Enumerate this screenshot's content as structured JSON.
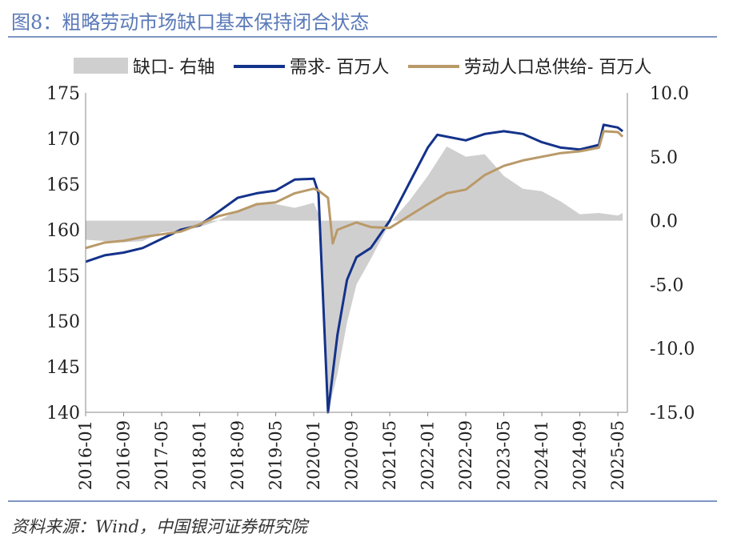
{
  "title": "图8：粗略劳动市场缺口基本保持闭合状态",
  "source": "资料来源：Wind，中国银河证券研究院",
  "colors": {
    "gap": "#d0cfd0",
    "demand": "#13328a",
    "supply": "#b99a69",
    "title": "#5b7ab8",
    "rule": "#7f95c4"
  },
  "chart_data": {
    "type": "line",
    "legend_position": "top",
    "grid": false,
    "x_ticks": [
      "2016-01",
      "2016-09",
      "2017-05",
      "2018-01",
      "2018-09",
      "2019-05",
      "2020-01",
      "2020-09",
      "2021-05",
      "2022-01",
      "2022-09",
      "2023-05",
      "2024-01",
      "2024-09",
      "2025-05"
    ],
    "left_axis": {
      "ylim": [
        140,
        175
      ],
      "ticks": [
        "140",
        "145",
        "150",
        "155",
        "160",
        "165",
        "170",
        "175"
      ]
    },
    "right_axis": {
      "ylim": [
        -15,
        10
      ],
      "ticks": [
        "-15.0",
        "-10.0",
        "-5.0",
        "0.0",
        "5.0",
        "10.0"
      ]
    },
    "series": [
      {
        "name": "缺口- 右轴",
        "type": "area",
        "axis": "right",
        "points": [
          [
            "2016-01",
            -1.5
          ],
          [
            "2016-05",
            -1.6
          ],
          [
            "2016-09",
            -1.7
          ],
          [
            "2017-01",
            -1.6
          ],
          [
            "2017-05",
            -0.9
          ],
          [
            "2017-09",
            -0.8
          ],
          [
            "2018-01",
            -0.5
          ],
          [
            "2018-05",
            0.0
          ],
          [
            "2018-09",
            0.8
          ],
          [
            "2019-01",
            1.4
          ],
          [
            "2019-05",
            1.3
          ],
          [
            "2019-09",
            1.0
          ],
          [
            "2020-01",
            1.4
          ],
          [
            "2020-02",
            0.5
          ],
          [
            "2020-04",
            -15.5
          ],
          [
            "2020-06",
            -12.0
          ],
          [
            "2020-08",
            -8.0
          ],
          [
            "2020-10",
            -5.0
          ],
          [
            "2021-01",
            -3.0
          ],
          [
            "2021-05",
            -0.2
          ],
          [
            "2021-09",
            1.5
          ],
          [
            "2022-01",
            3.5
          ],
          [
            "2022-05",
            5.8
          ],
          [
            "2022-09",
            5.0
          ],
          [
            "2023-01",
            5.2
          ],
          [
            "2023-05",
            3.5
          ],
          [
            "2023-09",
            2.5
          ],
          [
            "2024-01",
            2.3
          ],
          [
            "2024-05",
            1.5
          ],
          [
            "2024-09",
            0.5
          ],
          [
            "2025-01",
            0.6
          ],
          [
            "2025-05",
            0.4
          ],
          [
            "2025-06",
            0.6
          ]
        ]
      },
      {
        "name": "需求- 百万人",
        "type": "line",
        "axis": "left",
        "points": [
          [
            "2016-01",
            156.5
          ],
          [
            "2016-05",
            157.2
          ],
          [
            "2016-09",
            157.5
          ],
          [
            "2017-01",
            158.0
          ],
          [
            "2017-05",
            159.0
          ],
          [
            "2017-09",
            160.0
          ],
          [
            "2018-01",
            160.5
          ],
          [
            "2018-05",
            162.0
          ],
          [
            "2018-09",
            163.5
          ],
          [
            "2019-01",
            164.0
          ],
          [
            "2019-05",
            164.3
          ],
          [
            "2019-09",
            165.5
          ],
          [
            "2020-01",
            165.6
          ],
          [
            "2020-02",
            164.0
          ],
          [
            "2020-04",
            140.0
          ],
          [
            "2020-06",
            148.5
          ],
          [
            "2020-08",
            154.5
          ],
          [
            "2020-10",
            157.0
          ],
          [
            "2021-01",
            158.0
          ],
          [
            "2021-05",
            161.0
          ],
          [
            "2021-09",
            165.0
          ],
          [
            "2022-01",
            169.0
          ],
          [
            "2022-03",
            170.4
          ],
          [
            "2022-09",
            169.8
          ],
          [
            "2023-01",
            170.5
          ],
          [
            "2023-05",
            170.8
          ],
          [
            "2023-09",
            170.5
          ],
          [
            "2024-01",
            169.6
          ],
          [
            "2024-05",
            169.0
          ],
          [
            "2024-09",
            168.8
          ],
          [
            "2025-01",
            169.3
          ],
          [
            "2025-02",
            171.5
          ],
          [
            "2025-05",
            171.2
          ],
          [
            "2025-06",
            170.8
          ]
        ]
      },
      {
        "name": "劳动人口总供给- 百万人",
        "type": "line",
        "axis": "left",
        "points": [
          [
            "2016-01",
            158.0
          ],
          [
            "2016-05",
            158.6
          ],
          [
            "2016-09",
            158.8
          ],
          [
            "2017-01",
            159.2
          ],
          [
            "2017-05",
            159.5
          ],
          [
            "2017-09",
            159.8
          ],
          [
            "2018-01",
            160.6
          ],
          [
            "2018-05",
            161.5
          ],
          [
            "2018-09",
            162.0
          ],
          [
            "2019-01",
            162.8
          ],
          [
            "2019-05",
            163.0
          ],
          [
            "2019-09",
            164.0
          ],
          [
            "2020-01",
            164.5
          ],
          [
            "2020-02",
            164.3
          ],
          [
            "2020-04",
            163.5
          ],
          [
            "2020-05",
            158.5
          ],
          [
            "2020-06",
            160.0
          ],
          [
            "2020-08",
            160.4
          ],
          [
            "2020-10",
            160.8
          ],
          [
            "2021-01",
            160.3
          ],
          [
            "2021-05",
            160.2
          ],
          [
            "2021-09",
            161.5
          ],
          [
            "2022-01",
            162.8
          ],
          [
            "2022-05",
            164.0
          ],
          [
            "2022-09",
            164.4
          ],
          [
            "2023-01",
            166.0
          ],
          [
            "2023-05",
            167.0
          ],
          [
            "2023-09",
            167.6
          ],
          [
            "2024-01",
            168.0
          ],
          [
            "2024-05",
            168.4
          ],
          [
            "2024-09",
            168.6
          ],
          [
            "2025-01",
            169.0
          ],
          [
            "2025-02",
            170.8
          ],
          [
            "2025-05",
            170.7
          ],
          [
            "2025-06",
            170.2
          ]
        ]
      }
    ]
  }
}
